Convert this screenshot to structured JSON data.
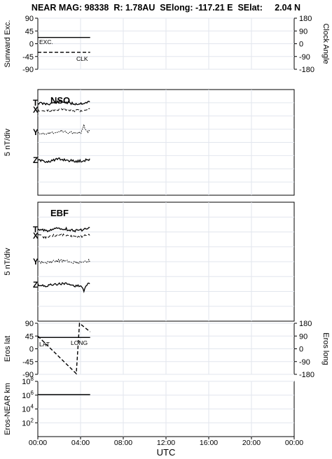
{
  "header": {
    "title": "NEAR MAG: 98338  R: 1.78AU  SElong: -117.21 E  SElat:     2.04 N"
  },
  "x_axis": {
    "label": "UTC",
    "ticks": [
      "00:00",
      "04:00",
      "08:00",
      "12:00",
      "16:00",
      "20:00",
      "00:00"
    ]
  },
  "chart_data": [
    {
      "type": "line",
      "ylabel": "Sunward Exc.",
      "ylabel_right": "Clock Angle",
      "ylim": [
        -90,
        90
      ],
      "ylim_right": [
        -180,
        180
      ],
      "yticks": [
        "90",
        "45",
        "0",
        "-45",
        "-90"
      ],
      "yticks_right": [
        "180",
        "90",
        "0",
        "-90",
        "-180"
      ],
      "grid": true,
      "series": [
        {
          "name": "EXC.",
          "style": "solid",
          "x": [
            0,
            4.9
          ],
          "y": [
            22,
            22
          ]
        },
        {
          "name": "CLK",
          "style": "dashed",
          "x": [
            0,
            4.9
          ],
          "y": [
            -30,
            -30
          ]
        }
      ]
    },
    {
      "type": "line",
      "title": "NSO",
      "ylabel": "5 nT/div",
      "grid": true,
      "series": [
        {
          "name": "T",
          "style": "solid",
          "x": [
            0,
            4.9
          ]
        },
        {
          "name": "X",
          "style": "dashed",
          "x": [
            0,
            4.9
          ]
        },
        {
          "name": "Y",
          "style": "dotted",
          "x": [
            0,
            4.9
          ]
        },
        {
          "name": "Z",
          "style": "solid",
          "x": [
            0,
            4.9
          ]
        }
      ]
    },
    {
      "type": "line",
      "title": "EBF",
      "ylabel": "5 nT/div",
      "grid": true,
      "series": [
        {
          "name": "T",
          "style": "solid",
          "x": [
            0,
            4.9
          ]
        },
        {
          "name": "X",
          "style": "dashed",
          "x": [
            0,
            4.9
          ]
        },
        {
          "name": "Y",
          "style": "dotted",
          "x": [
            0,
            4.9
          ]
        },
        {
          "name": "Z",
          "style": "solid",
          "x": [
            0,
            4.9
          ]
        }
      ]
    },
    {
      "type": "line",
      "ylabel": "Eros lat",
      "ylabel_right": "Eros long",
      "ylim": [
        -90,
        90
      ],
      "ylim_right": [
        -180,
        180
      ],
      "yticks": [
        "90",
        "45",
        "0",
        "-45",
        "-90"
      ],
      "yticks_right": [
        "180",
        "90",
        "0",
        "-90",
        "-180"
      ],
      "grid": true,
      "series": [
        {
          "name": "LAT",
          "style": "solid",
          "x": [
            0,
            4.9
          ],
          "y": [
            40,
            40
          ]
        },
        {
          "name": "LONG",
          "style": "dashed",
          "x": [
            0,
            3.6,
            3.9,
            4.9
          ],
          "y_right": [
            90,
            -175,
            180,
            120
          ]
        }
      ]
    },
    {
      "type": "line",
      "ylabel": "Eros-NEAR km",
      "yscale": "log",
      "ylim": [
        1,
        100000000
      ],
      "yticks": [
        "10^8",
        "10^6",
        "10^4",
        "10^2"
      ],
      "grid": true,
      "series": [
        {
          "name": "Eros-NEAR",
          "style": "solid",
          "x": [
            0,
            4.9
          ],
          "y": [
            1200000,
            1200000
          ]
        }
      ]
    }
  ]
}
